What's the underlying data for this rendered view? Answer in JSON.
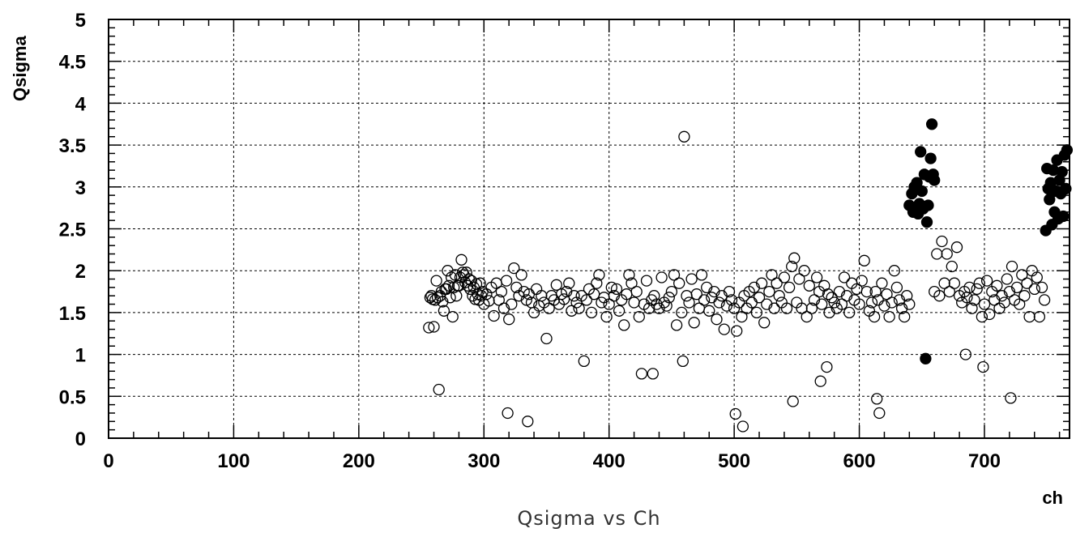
{
  "chart_data": {
    "type": "scatter",
    "title": "Qsigma vs Ch",
    "xlabel": "ch",
    "ylabel": "Qsigma",
    "xlim": [
      0,
      768
    ],
    "ylim": [
      0,
      5
    ],
    "xticks": [
      0,
      100,
      200,
      300,
      400,
      500,
      600,
      700
    ],
    "yticks": [
      0,
      0.5,
      1,
      1.5,
      2,
      2.5,
      3,
      3.5,
      4,
      4.5,
      5
    ],
    "ytick_labels": [
      "0",
      "0.5",
      "1",
      "1.5",
      "2",
      "2.5",
      "3",
      "3.5",
      "4",
      "4.5",
      "5"
    ],
    "grid": true,
    "series": [
      {
        "marker": "open-circle",
        "points": [
          [
            256,
            1.32
          ],
          [
            257,
            1.68
          ],
          [
            258,
            1.7
          ],
          [
            259,
            1.66
          ],
          [
            260,
            1.33
          ],
          [
            261,
            1.65
          ],
          [
            262,
            1.88
          ],
          [
            263,
            1.68
          ],
          [
            264,
            0.58
          ],
          [
            265,
            1.7
          ],
          [
            266,
            1.75
          ],
          [
            267,
            1.63
          ],
          [
            268,
            1.52
          ],
          [
            269,
            1.78
          ],
          [
            270,
            1.78
          ],
          [
            271,
            2.0
          ],
          [
            272,
            1.82
          ],
          [
            273,
            1.68
          ],
          [
            274,
            1.92
          ],
          [
            275,
            1.45
          ],
          [
            276,
            1.8
          ],
          [
            277,
            1.95
          ],
          [
            278,
            1.7
          ],
          [
            279,
            1.82
          ],
          [
            280,
            1.82
          ],
          [
            281,
            1.92
          ],
          [
            282,
            2.13
          ],
          [
            283,
            1.98
          ],
          [
            284,
            1.95
          ],
          [
            285,
            1.86
          ],
          [
            286,
            1.98
          ],
          [
            287,
            1.82
          ],
          [
            288,
            1.9
          ],
          [
            289,
            1.78
          ],
          [
            290,
            1.88
          ],
          [
            291,
            1.7
          ],
          [
            292,
            1.8
          ],
          [
            293,
            1.66
          ],
          [
            294,
            1.84
          ],
          [
            295,
            1.72
          ],
          [
            296,
            1.65
          ],
          [
            297,
            1.85
          ],
          [
            298,
            1.7
          ],
          [
            299,
            1.75
          ],
          [
            300,
            1.6
          ],
          [
            302,
            1.72
          ],
          [
            304,
            1.64
          ],
          [
            306,
            1.8
          ],
          [
            308,
            1.46
          ],
          [
            310,
            1.85
          ],
          [
            312,
            1.65
          ],
          [
            314,
            1.75
          ],
          [
            316,
            1.55
          ],
          [
            318,
            1.88
          ],
          [
            319,
            0.3
          ],
          [
            320,
            1.42
          ],
          [
            322,
            1.6
          ],
          [
            324,
            2.03
          ],
          [
            326,
            1.8
          ],
          [
            328,
            1.7
          ],
          [
            330,
            1.95
          ],
          [
            332,
            1.75
          ],
          [
            334,
            1.65
          ],
          [
            335,
            0.2
          ],
          [
            336,
            1.72
          ],
          [
            338,
            1.62
          ],
          [
            340,
            1.5
          ],
          [
            342,
            1.78
          ],
          [
            344,
            1.58
          ],
          [
            346,
            1.7
          ],
          [
            348,
            1.62
          ],
          [
            350,
            1.19
          ],
          [
            352,
            1.55
          ],
          [
            354,
            1.7
          ],
          [
            356,
            1.65
          ],
          [
            358,
            1.83
          ],
          [
            360,
            1.6
          ],
          [
            362,
            1.72
          ],
          [
            364,
            1.66
          ],
          [
            366,
            1.75
          ],
          [
            368,
            1.85
          ],
          [
            370,
            1.52
          ],
          [
            372,
            1.7
          ],
          [
            374,
            1.62
          ],
          [
            376,
            1.55
          ],
          [
            378,
            1.7
          ],
          [
            380,
            0.92
          ],
          [
            382,
            1.65
          ],
          [
            384,
            1.78
          ],
          [
            386,
            1.5
          ],
          [
            388,
            1.72
          ],
          [
            390,
            1.85
          ],
          [
            392,
            1.95
          ],
          [
            394,
            1.62
          ],
          [
            396,
            1.68
          ],
          [
            398,
            1.45
          ],
          [
            400,
            1.6
          ],
          [
            402,
            1.8
          ],
          [
            404,
            1.7
          ],
          [
            406,
            1.78
          ],
          [
            408,
            1.52
          ],
          [
            410,
            1.65
          ],
          [
            412,
            1.35
          ],
          [
            414,
            1.72
          ],
          [
            416,
            1.95
          ],
          [
            418,
            1.85
          ],
          [
            420,
            1.62
          ],
          [
            422,
            1.75
          ],
          [
            424,
            1.45
          ],
          [
            426,
            0.77
          ],
          [
            428,
            1.6
          ],
          [
            430,
            1.88
          ],
          [
            432,
            1.55
          ],
          [
            434,
            1.65
          ],
          [
            435,
            0.77
          ],
          [
            436,
            1.7
          ],
          [
            438,
            1.6
          ],
          [
            440,
            1.55
          ],
          [
            442,
            1.92
          ],
          [
            444,
            1.62
          ],
          [
            446,
            1.58
          ],
          [
            448,
            1.68
          ],
          [
            450,
            1.75
          ],
          [
            452,
            1.95
          ],
          [
            454,
            1.35
          ],
          [
            456,
            1.85
          ],
          [
            458,
            1.5
          ],
          [
            459,
            0.92
          ],
          [
            460,
            3.6
          ],
          [
            462,
            1.7
          ],
          [
            464,
            1.62
          ],
          [
            466,
            1.9
          ],
          [
            468,
            1.38
          ],
          [
            470,
            1.72
          ],
          [
            472,
            1.55
          ],
          [
            474,
            1.95
          ],
          [
            476,
            1.65
          ],
          [
            478,
            1.8
          ],
          [
            480,
            1.52
          ],
          [
            482,
            1.68
          ],
          [
            484,
            1.75
          ],
          [
            486,
            1.42
          ],
          [
            488,
            1.62
          ],
          [
            490,
            1.7
          ],
          [
            492,
            1.3
          ],
          [
            494,
            1.58
          ],
          [
            496,
            1.75
          ],
          [
            498,
            1.65
          ],
          [
            500,
            1.55
          ],
          [
            501,
            0.29
          ],
          [
            502,
            1.28
          ],
          [
            504,
            1.62
          ],
          [
            506,
            1.45
          ],
          [
            507,
            0.14
          ],
          [
            508,
            1.7
          ],
          [
            510,
            1.55
          ],
          [
            512,
            1.75
          ],
          [
            514,
            1.62
          ],
          [
            516,
            1.8
          ],
          [
            518,
            1.5
          ],
          [
            520,
            1.68
          ],
          [
            522,
            1.85
          ],
          [
            524,
            1.38
          ],
          [
            526,
            1.6
          ],
          [
            528,
            1.75
          ],
          [
            530,
            1.95
          ],
          [
            532,
            1.55
          ],
          [
            534,
            1.85
          ],
          [
            536,
            1.7
          ],
          [
            538,
            1.62
          ],
          [
            540,
            1.92
          ],
          [
            542,
            1.55
          ],
          [
            544,
            1.8
          ],
          [
            546,
            2.05
          ],
          [
            547,
            0.44
          ],
          [
            548,
            2.15
          ],
          [
            550,
            1.62
          ],
          [
            552,
            1.9
          ],
          [
            554,
            1.55
          ],
          [
            556,
            2.0
          ],
          [
            558,
            1.45
          ],
          [
            560,
            1.82
          ],
          [
            562,
            1.55
          ],
          [
            564,
            1.65
          ],
          [
            566,
            1.92
          ],
          [
            568,
            1.75
          ],
          [
            569,
            0.68
          ],
          [
            570,
            1.6
          ],
          [
            572,
            1.82
          ],
          [
            574,
            0.85
          ],
          [
            575,
            1.72
          ],
          [
            576,
            1.5
          ],
          [
            578,
            1.68
          ],
          [
            580,
            1.62
          ],
          [
            582,
            1.55
          ],
          [
            584,
            1.75
          ],
          [
            586,
            1.6
          ],
          [
            588,
            1.92
          ],
          [
            590,
            1.7
          ],
          [
            592,
            1.5
          ],
          [
            594,
            1.85
          ],
          [
            596,
            1.65
          ],
          [
            598,
            1.78
          ],
          [
            600,
            1.6
          ],
          [
            602,
            1.88
          ],
          [
            604,
            2.12
          ],
          [
            606,
            1.75
          ],
          [
            608,
            1.52
          ],
          [
            610,
            1.62
          ],
          [
            612,
            1.45
          ],
          [
            613,
            1.75
          ],
          [
            614,
            0.47
          ],
          [
            615,
            1.65
          ],
          [
            616,
            0.3
          ],
          [
            618,
            1.85
          ],
          [
            620,
            1.58
          ],
          [
            622,
            1.72
          ],
          [
            624,
            1.45
          ],
          [
            626,
            1.62
          ],
          [
            628,
            2.0
          ],
          [
            630,
            1.8
          ],
          [
            632,
            1.65
          ],
          [
            634,
            1.55
          ],
          [
            636,
            1.45
          ],
          [
            638,
            1.7
          ],
          [
            640,
            1.6
          ],
          [
            660,
            1.75
          ],
          [
            662,
            2.2
          ],
          [
            664,
            1.7
          ],
          [
            666,
            2.35
          ],
          [
            668,
            1.85
          ],
          [
            670,
            2.2
          ],
          [
            672,
            1.75
          ],
          [
            674,
            2.05
          ],
          [
            676,
            1.85
          ],
          [
            678,
            2.28
          ],
          [
            680,
            1.7
          ],
          [
            682,
            1.62
          ],
          [
            684,
            1.75
          ],
          [
            685,
            1.0
          ],
          [
            686,
            1.68
          ],
          [
            688,
            1.8
          ],
          [
            690,
            1.55
          ],
          [
            692,
            1.65
          ],
          [
            694,
            1.78
          ],
          [
            696,
            1.85
          ],
          [
            698,
            1.45
          ],
          [
            699,
            0.85
          ],
          [
            700,
            1.6
          ],
          [
            702,
            1.88
          ],
          [
            704,
            1.48
          ],
          [
            706,
            1.75
          ],
          [
            708,
            1.65
          ],
          [
            710,
            1.82
          ],
          [
            712,
            1.55
          ],
          [
            714,
            1.7
          ],
          [
            716,
            1.62
          ],
          [
            718,
            1.9
          ],
          [
            720,
            1.75
          ],
          [
            721,
            0.48
          ],
          [
            722,
            2.05
          ],
          [
            724,
            1.65
          ],
          [
            726,
            1.8
          ],
          [
            728,
            1.6
          ],
          [
            730,
            1.95
          ],
          [
            732,
            1.7
          ],
          [
            734,
            1.85
          ],
          [
            736,
            1.45
          ],
          [
            738,
            2.0
          ],
          [
            740,
            1.78
          ],
          [
            742,
            1.92
          ],
          [
            744,
            1.45
          ],
          [
            746,
            1.8
          ],
          [
            748,
            1.65
          ]
        ]
      },
      {
        "marker": "filled-circle",
        "points": [
          [
            640,
            2.78
          ],
          [
            642,
            2.92
          ],
          [
            643,
            2.7
          ],
          [
            644,
            3.0
          ],
          [
            645,
            2.75
          ],
          [
            646,
            3.05
          ],
          [
            647,
            2.68
          ],
          [
            648,
            2.8
          ],
          [
            649,
            3.42
          ],
          [
            650,
            2.95
          ],
          [
            651,
            2.74
          ],
          [
            652,
            3.15
          ],
          [
            653,
            0.95
          ],
          [
            654,
            2.58
          ],
          [
            655,
            2.78
          ],
          [
            656,
            3.12
          ],
          [
            657,
            3.34
          ],
          [
            658,
            3.75
          ],
          [
            659,
            3.15
          ],
          [
            660,
            3.08
          ],
          [
            749,
            2.48
          ],
          [
            750,
            3.22
          ],
          [
            751,
            2.98
          ],
          [
            752,
            2.85
          ],
          [
            753,
            3.05
          ],
          [
            754,
            2.55
          ],
          [
            755,
            3.2
          ],
          [
            756,
            2.7
          ],
          [
            757,
            2.95
          ],
          [
            758,
            3.32
          ],
          [
            759,
            2.62
          ],
          [
            760,
            3.08
          ],
          [
            761,
            2.92
          ],
          [
            762,
            3.18
          ],
          [
            763,
            2.65
          ],
          [
            764,
            3.38
          ],
          [
            765,
            2.98
          ],
          [
            766,
            3.44
          ]
        ]
      }
    ]
  }
}
